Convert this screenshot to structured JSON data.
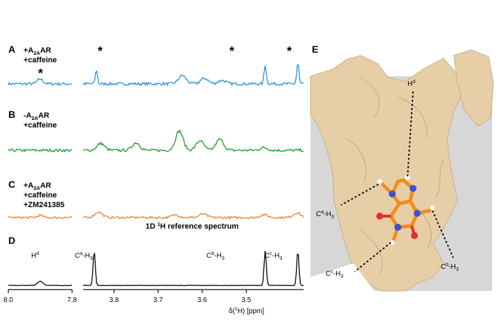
{
  "panels": {
    "A": {
      "letter": "A",
      "lines": [
        "+A2AAR",
        "+caffeine"
      ],
      "markers": [
        "*",
        "*",
        "*",
        "*"
      ],
      "color": "#1f8fe0"
    },
    "B": {
      "letter": "B",
      "lines": [
        "-A2AAR",
        "+caffeine"
      ],
      "color": "#1a9a22"
    },
    "C": {
      "letter": "C",
      "lines": [
        "+A2AAR",
        "+caffeine",
        "+ZM241385"
      ],
      "color": "#ef7d2a"
    },
    "D": {
      "letter": "D",
      "title": "1D 1H reference spectrum",
      "color": "#111111",
      "peak_labels": {
        "hd": "Hd",
        "ca": "Ca-H3",
        "cb": "Cb-H3",
        "cc": "Cc-H3"
      }
    },
    "E": {
      "letter": "E",
      "labels": {
        "hd": "Hd",
        "ca": "Ca-H3",
        "cb": "Cb-H3",
        "cc": "Cc-H3"
      }
    }
  },
  "axis": {
    "title": "δ(1H) [ppm]",
    "left_ticks": [
      "8.0",
      "7.8"
    ],
    "right_ticks": [
      "3.8",
      "3.7",
      "3.6",
      "3.5"
    ],
    "left_range_ppm": [
      8.0,
      7.8
    ],
    "right_range_ppm": [
      3.87,
      3.37
    ]
  },
  "spectra": {
    "A": {
      "left_peaks": [
        [
          7.9,
          7
        ]
      ],
      "right_peaks": [
        [
          3.84,
          20
        ],
        [
          3.645,
          12
        ],
        [
          3.595,
          8
        ],
        [
          3.555,
          5
        ],
        [
          3.457,
          28
        ],
        [
          3.383,
          30
        ]
      ],
      "noise": 2.0
    },
    "B": {
      "left_peaks": [],
      "right_peaks": [
        [
          3.83,
          10
        ],
        [
          3.75,
          11
        ],
        [
          3.652,
          28
        ],
        [
          3.605,
          14
        ],
        [
          3.56,
          16
        ],
        [
          3.46,
          4
        ]
      ],
      "noise": 2.0
    },
    "C": {
      "left_peaks": [
        [
          7.9,
          3
        ]
      ],
      "right_peaks": [
        [
          3.835,
          8
        ],
        [
          3.66,
          4
        ],
        [
          3.598,
          5
        ],
        [
          3.46,
          4
        ],
        [
          3.385,
          7
        ]
      ],
      "noise": 1.6
    },
    "D": {
      "left_peaks": [
        [
          7.9,
          6
        ]
      ],
      "right_peaks": [
        [
          3.845,
          50
        ],
        [
          3.457,
          50
        ],
        [
          3.383,
          50
        ]
      ],
      "noise": 0.35
    }
  }
}
